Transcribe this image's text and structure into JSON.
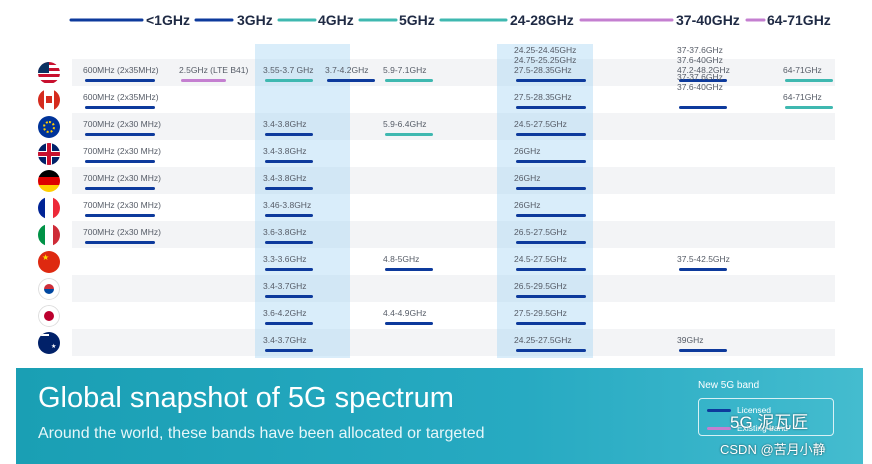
{
  "chart_data": {
    "type": "table",
    "title": "Global snapshot of 5G spectrum",
    "subtitle": "Around the world, these bands have been allocated or targeted",
    "columns": [
      "<1GHz",
      "3GHz",
      "4GHz",
      "5GHz",
      "24-28GHz",
      "37-40GHz",
      "64-71GHz"
    ],
    "rows": [
      {
        "country": "United States",
        "bands": [
          {
            "label": "600MHz (2x35MHz)",
            "col": 0,
            "status": "licensed"
          },
          {
            "label": "2.5GHz (LTE B41)",
            "col": 1,
            "status": "existing"
          },
          {
            "label": "3.55-3.7 GHz",
            "col": 2,
            "status": "unlicensed"
          },
          {
            "label": "3.7-4.2GHz",
            "col": 2,
            "status": "licensed"
          },
          {
            "label": "5.9-7.1GHz",
            "col": 3,
            "status": "unlicensed"
          },
          {
            "label": "24.25-24.45GHz\n24.75-25.25GHz\n27.5-28.35GHz",
            "col": 4,
            "status": "licensed"
          },
          {
            "label": "37-37.6GHz\n37.6-40GHz\n47.2-48.2GHz",
            "col": 5,
            "status": "licensed"
          },
          {
            "label": "64-71GHz",
            "col": 6,
            "status": "unlicensed"
          }
        ]
      },
      {
        "country": "Canada",
        "bands": [
          {
            "label": "600MHz (2x35MHz)",
            "col": 0,
            "status": "licensed"
          },
          {
            "label": "27.5-28.35GHz",
            "col": 4,
            "status": "licensed"
          },
          {
            "label": "37-37.6GHz\n37.6-40GHz",
            "col": 5,
            "status": "licensed"
          },
          {
            "label": "64-71GHz",
            "col": 6,
            "status": "unlicensed"
          }
        ]
      },
      {
        "country": "European Union",
        "bands": [
          {
            "label": "700MHz (2x30 MHz)",
            "col": 0,
            "status": "licensed"
          },
          {
            "label": "3.4-3.8GHz",
            "col": 2,
            "status": "licensed"
          },
          {
            "label": "5.9-6.4GHz",
            "col": 3,
            "status": "unlicensed"
          },
          {
            "label": "24.5-27.5GHz",
            "col": 4,
            "status": "licensed"
          }
        ]
      },
      {
        "country": "United Kingdom",
        "bands": [
          {
            "label": "700MHz (2x30 MHz)",
            "col": 0,
            "status": "licensed"
          },
          {
            "label": "3.4-3.8GHz",
            "col": 2,
            "status": "licensed"
          },
          {
            "label": "26GHz",
            "col": 4,
            "status": "licensed"
          }
        ]
      },
      {
        "country": "Germany",
        "bands": [
          {
            "label": "700MHz (2x30 MHz)",
            "col": 0,
            "status": "licensed"
          },
          {
            "label": "3.4-3.8GHz",
            "col": 2,
            "status": "licensed"
          },
          {
            "label": "26GHz",
            "col": 4,
            "status": "licensed"
          }
        ]
      },
      {
        "country": "France",
        "bands": [
          {
            "label": "700MHz (2x30 MHz)",
            "col": 0,
            "status": "licensed"
          },
          {
            "label": "3.46-3.8GHz",
            "col": 2,
            "status": "licensed"
          },
          {
            "label": "26GHz",
            "col": 4,
            "status": "licensed"
          }
        ]
      },
      {
        "country": "Italy",
        "bands": [
          {
            "label": "700MHz (2x30 MHz)",
            "col": 0,
            "status": "licensed"
          },
          {
            "label": "3.6-3.8GHz",
            "col": 2,
            "status": "licensed"
          },
          {
            "label": "26.5-27.5GHz",
            "col": 4,
            "status": "licensed"
          }
        ]
      },
      {
        "country": "China",
        "bands": [
          {
            "label": "3.3-3.6GHz",
            "col": 2,
            "status": "licensed"
          },
          {
            "label": "4.8-5GHz",
            "col": 3,
            "status": "licensed"
          },
          {
            "label": "24.5-27.5GHz",
            "col": 4,
            "status": "licensed"
          },
          {
            "label": "37.5-42.5GHz",
            "col": 5,
            "status": "licensed"
          }
        ]
      },
      {
        "country": "South Korea",
        "bands": [
          {
            "label": "3.4-3.7GHz",
            "col": 2,
            "status": "licensed"
          },
          {
            "label": "26.5-29.5GHz",
            "col": 4,
            "status": "licensed"
          }
        ]
      },
      {
        "country": "Japan",
        "bands": [
          {
            "label": "3.6-4.2GHz",
            "col": 2,
            "status": "licensed"
          },
          {
            "label": "4.4-4.9GHz",
            "col": 3,
            "status": "licensed"
          },
          {
            "label": "27.5-29.5GHz",
            "col": 4,
            "status": "licensed"
          }
        ]
      },
      {
        "country": "Australia",
        "bands": [
          {
            "label": "3.4-3.7GHz",
            "col": 2,
            "status": "licensed"
          },
          {
            "label": "24.25-27.5GHz",
            "col": 4,
            "status": "licensed"
          },
          {
            "label": "39GHz",
            "col": 5,
            "status": "licensed"
          }
        ]
      }
    ],
    "highlighted_columns": [
      "4GHz",
      "24-28GHz"
    ],
    "legend_title": "New 5G band",
    "legend": [
      {
        "name": "Licensed",
        "color": "#0d3a9c"
      },
      {
        "name": "Existing band",
        "color": "#c47fd0"
      }
    ]
  },
  "colors": {
    "licensed": "#0d3a9c",
    "unlicensed": "#3fb8b0",
    "existing": "#c47fd0",
    "highlight": "#aad6f4",
    "banner": "#1fa3b8"
  },
  "watermark": {
    "brand": "5G 泥瓦匠",
    "credit": "CSDN @苦月小静"
  }
}
